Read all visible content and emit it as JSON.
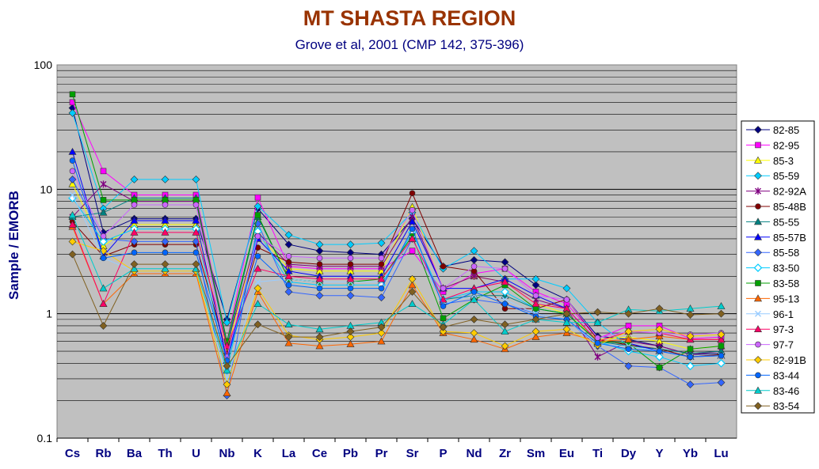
{
  "chart_data": {
    "type": "line",
    "title": "MT SHASTA REGION",
    "subtitle": "Grove et al, 2001 (CMP 142, 375-396)",
    "xlabel": "",
    "ylabel": "Sample / EMORB",
    "yscale": "log",
    "ylim": [
      0.1,
      100
    ],
    "yticks": [
      "0.1",
      "1",
      "10",
      "100"
    ],
    "grid": true,
    "legend_position": "right",
    "categories": [
      "Cs",
      "Rb",
      "Ba",
      "Th",
      "U",
      "Nb",
      "K",
      "La",
      "Ce",
      "Pb",
      "Pr",
      "Sr",
      "P",
      "Nd",
      "Zr",
      "Sm",
      "Eu",
      "Ti",
      "Dy",
      "Y",
      "Yb",
      "Lu"
    ],
    "series": [
      {
        "name": "82-85",
        "color": "#000080",
        "marker": "diamond",
        "values": [
          45,
          4.5,
          5.8,
          5.8,
          5.8,
          0.9,
          7.0,
          3.6,
          3.2,
          3.1,
          3.0,
          5.8,
          2.4,
          2.7,
          2.6,
          1.7,
          1.3,
          0.66,
          0.62,
          0.55,
          0.47,
          0.48
        ]
      },
      {
        "name": "82-95",
        "color": "#FF00FF",
        "marker": "square",
        "values": [
          50,
          14,
          9.0,
          9.0,
          9.0,
          0.6,
          8.6,
          2.4,
          2.3,
          2.3,
          2.3,
          3.2,
          1.5,
          2.1,
          2.3,
          1.5,
          1.2,
          0.63,
          0.8,
          0.8,
          0.63,
          0.65
        ]
      },
      {
        "name": "85-3",
        "color": "#FFFF00",
        "marker": "triangle",
        "values": [
          11,
          3.5,
          5.2,
          5.2,
          5.2,
          0.5,
          4.4,
          2.3,
          2.2,
          2.2,
          2.2,
          7.2,
          1.6,
          2.0,
          1.8,
          1.2,
          1.0,
          0.62,
          0.65,
          0.6,
          0.52,
          0.55
        ]
      },
      {
        "name": "85-59",
        "color": "#00CCFF",
        "marker": "diamond",
        "values": [
          41,
          7.0,
          12,
          12,
          12,
          0.85,
          7.3,
          4.3,
          3.6,
          3.6,
          3.7,
          6.5,
          2.3,
          3.2,
          1.9,
          1.9,
          1.6,
          0.85,
          0.55,
          0.5,
          0.45,
          0.47
        ]
      },
      {
        "name": "82-92A",
        "color": "#800080",
        "marker": "star",
        "values": [
          6.0,
          11,
          8.0,
          8.0,
          8.0,
          0.55,
          4.5,
          2.5,
          2.4,
          2.4,
          2.4,
          6.0,
          1.6,
          2.0,
          1.8,
          1.3,
          1.1,
          0.45,
          0.6,
          0.55,
          0.47,
          0.5
        ]
      },
      {
        "name": "85-48B",
        "color": "#800000",
        "marker": "circle",
        "values": [
          5.5,
          2.9,
          3.6,
          3.6,
          3.6,
          0.48,
          3.4,
          2.6,
          2.5,
          2.5,
          2.5,
          9.3,
          2.4,
          2.2,
          1.1,
          1.1,
          1.3,
          0.62,
          0.56,
          0.52,
          0.45,
          0.47
        ]
      },
      {
        "name": "85-55",
        "color": "#008080",
        "marker": "triangle",
        "values": [
          6.0,
          6.5,
          8.5,
          8.5,
          8.5,
          0.55,
          6.0,
          1.9,
          1.8,
          1.8,
          1.8,
          4.0,
          1.3,
          1.4,
          1.4,
          1.1,
          1.0,
          0.6,
          0.55,
          0.52,
          0.48,
          0.5
        ]
      },
      {
        "name": "85-57B",
        "color": "#0000FF",
        "marker": "triangle",
        "values": [
          20,
          2.9,
          5.6,
          5.6,
          5.6,
          0.42,
          4.0,
          2.2,
          2.0,
          2.0,
          2.0,
          5.5,
          1.6,
          1.6,
          1.9,
          1.4,
          1.1,
          0.6,
          0.58,
          0.5,
          0.45,
          0.46
        ]
      },
      {
        "name": "85-58",
        "color": "#3366FF",
        "marker": "diamond",
        "values": [
          12,
          4.0,
          3.8,
          3.8,
          3.8,
          0.22,
          5.3,
          1.5,
          1.4,
          1.4,
          1.35,
          4.0,
          1.2,
          1.3,
          1.2,
          1.0,
          0.9,
          0.55,
          0.38,
          0.37,
          0.27,
          0.28
        ]
      },
      {
        "name": "83-50",
        "color": "#00CCFF",
        "marker": "diamond-open",
        "values": [
          8.5,
          3.8,
          4.8,
          4.8,
          4.8,
          0.35,
          4.6,
          1.8,
          1.7,
          1.7,
          1.7,
          4.5,
          1.3,
          1.5,
          1.5,
          1.1,
          1.0,
          0.6,
          0.5,
          0.45,
          0.38,
          0.4
        ]
      },
      {
        "name": "83-58",
        "color": "#00A000",
        "marker": "square",
        "values": [
          58,
          8.2,
          8.2,
          8.2,
          8.2,
          0.6,
          6.2,
          1.9,
          1.8,
          1.8,
          1.9,
          4.2,
          0.92,
          1.3,
          1.7,
          1.1,
          1.0,
          0.6,
          0.58,
          0.37,
          0.52,
          0.55
        ]
      },
      {
        "name": "95-13",
        "color": "#FF6600",
        "marker": "triangle",
        "values": [
          5.0,
          1.2,
          2.1,
          2.1,
          2.1,
          0.23,
          1.5,
          0.58,
          0.55,
          0.57,
          0.6,
          1.7,
          0.7,
          0.62,
          0.52,
          0.65,
          0.7,
          0.6,
          0.62,
          0.66,
          0.62,
          0.62
        ]
      },
      {
        "name": "96-1",
        "color": "#99CCFF",
        "marker": "cross",
        "values": [
          9.0,
          2.8,
          2.2,
          2.2,
          2.2,
          0.3,
          1.8,
          1.9,
          1.8,
          1.8,
          1.8,
          4.0,
          1.2,
          1.4,
          1.3,
          1.0,
          0.9,
          0.56,
          0.55,
          0.5,
          0.45,
          0.46
        ]
      },
      {
        "name": "97-3",
        "color": "#FF0066",
        "marker": "triangle",
        "values": [
          5.2,
          1.2,
          4.5,
          4.5,
          4.5,
          0.55,
          2.3,
          2.0,
          1.9,
          1.9,
          1.9,
          4.0,
          1.3,
          1.6,
          1.8,
          1.2,
          1.1,
          0.6,
          0.72,
          0.7,
          0.62,
          0.62
        ]
      },
      {
        "name": "97-7",
        "color": "#CC66FF",
        "marker": "circle",
        "values": [
          14,
          4.2,
          7.5,
          7.5,
          7.5,
          0.45,
          4.2,
          2.9,
          2.8,
          2.8,
          2.8,
          6.8,
          1.6,
          2.4,
          2.3,
          1.4,
          1.3,
          0.64,
          0.72,
          0.7,
          0.68,
          0.7
        ]
      },
      {
        "name": "82-91B",
        "color": "#FFCC00",
        "marker": "diamond",
        "values": [
          3.8,
          3.2,
          2.2,
          2.2,
          2.2,
          0.27,
          1.6,
          0.67,
          0.62,
          0.65,
          0.7,
          1.9,
          0.72,
          0.7,
          0.55,
          0.72,
          0.75,
          0.56,
          0.72,
          0.75,
          0.66,
          0.68
        ]
      },
      {
        "name": "83-44",
        "color": "#0066FF",
        "marker": "circle",
        "values": [
          17,
          2.8,
          3.1,
          3.1,
          3.1,
          0.42,
          2.9,
          1.7,
          1.6,
          1.6,
          1.6,
          4.8,
          1.15,
          1.5,
          1.2,
          0.95,
          0.9,
          0.58,
          0.52,
          0.5,
          0.45,
          0.46
        ]
      },
      {
        "name": "83-46",
        "color": "#00CCCC",
        "marker": "triangle",
        "values": [
          6.2,
          1.6,
          2.3,
          2.3,
          2.3,
          0.35,
          1.2,
          0.82,
          0.75,
          0.8,
          0.85,
          1.2,
          0.82,
          1.3,
          0.72,
          0.9,
          0.85,
          0.85,
          1.08,
          1.05,
          1.1,
          1.15
        ]
      },
      {
        "name": "83-54",
        "color": "#806020",
        "marker": "diamond",
        "values": [
          3.0,
          0.8,
          2.5,
          2.5,
          2.5,
          0.38,
          0.82,
          0.65,
          0.65,
          0.72,
          0.78,
          1.5,
          0.78,
          0.9,
          0.82,
          0.9,
          1.0,
          1.03,
          1.0,
          1.1,
          0.98,
          1.0
        ]
      }
    ]
  }
}
